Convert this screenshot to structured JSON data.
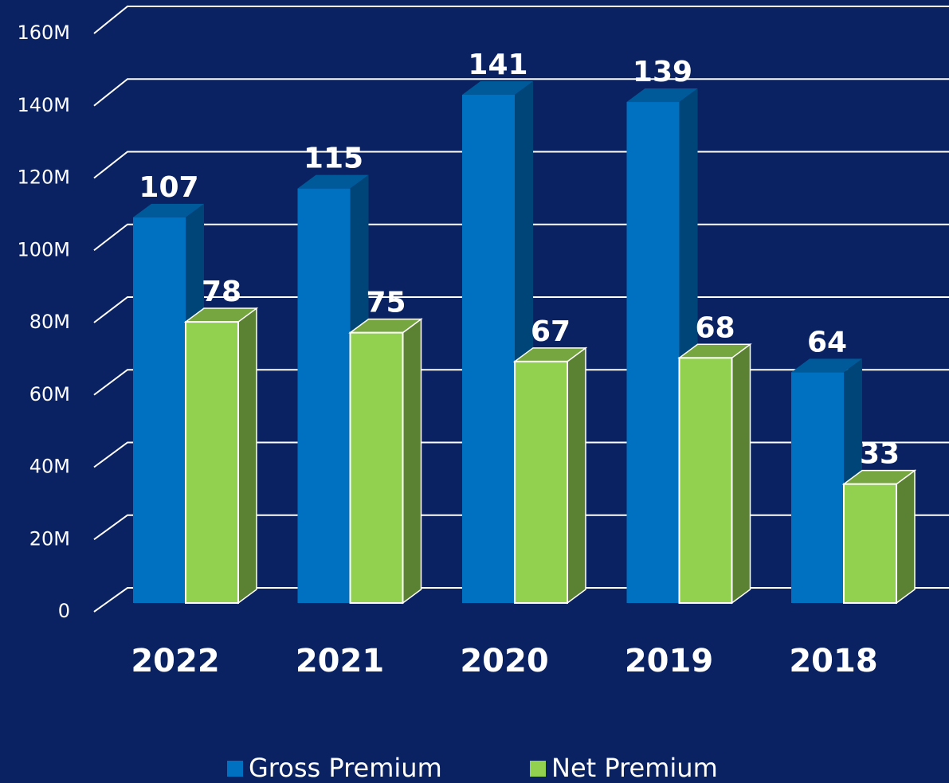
{
  "chart_data": {
    "type": "bar3d",
    "categories": [
      "2022",
      "2021",
      "2020",
      "2019",
      "2018"
    ],
    "series": [
      {
        "name": "Gross Premium",
        "color": "#0070c0",
        "values": [
          107,
          115,
          141,
          139,
          64
        ]
      },
      {
        "name": "Net Premium",
        "color": "#92d050",
        "values": [
          78,
          75,
          67,
          68,
          33
        ]
      }
    ],
    "ylim": [
      0,
      160
    ],
    "yticks": [
      0,
      {
        "value": 20,
        "label": "20M"
      },
      {
        "value": 40,
        "label": "40M"
      },
      {
        "value": 60,
        "label": "60M"
      },
      {
        "value": 80,
        "label": "80M"
      },
      {
        "value": 100,
        "label": "100M"
      },
      {
        "value": 120,
        "label": "120M"
      },
      {
        "value": 140,
        "label": "140M"
      },
      {
        "value": 160,
        "label": "160M"
      }
    ],
    "grid": true,
    "legend": "bottom"
  }
}
